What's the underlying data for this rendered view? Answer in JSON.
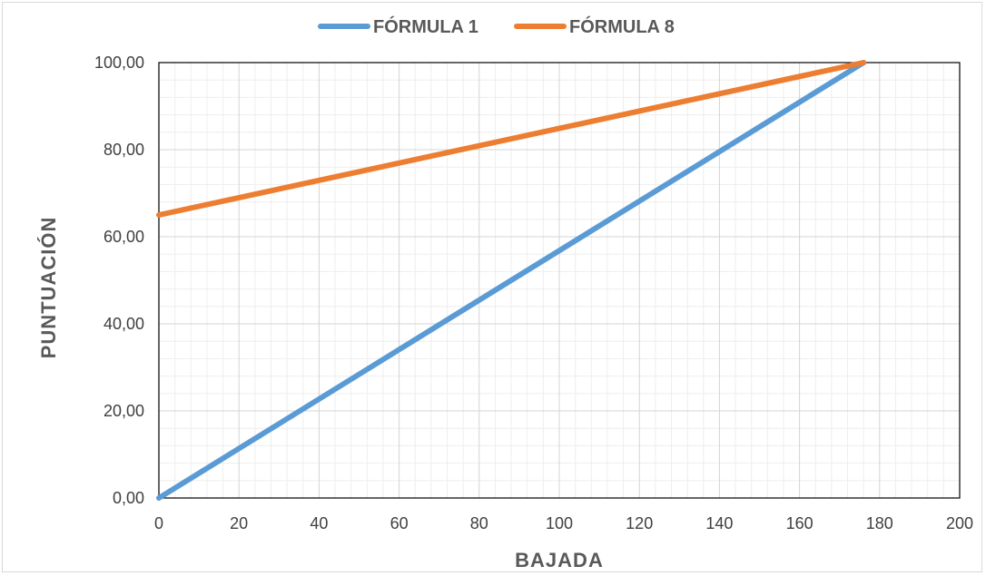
{
  "chart_data": {
    "type": "line",
    "xlabel": "BAJADA",
    "ylabel": "PUNTUACIÓN",
    "xlim": [
      0,
      200
    ],
    "ylim": [
      0,
      100
    ],
    "x_ticks": [
      "0",
      "20",
      "40",
      "60",
      "80",
      "100",
      "120",
      "140",
      "160",
      "180",
      "200"
    ],
    "y_ticks": [
      "0,00",
      "20,00",
      "40,00",
      "60,00",
      "80,00",
      "100,00"
    ],
    "x_major_step": 20,
    "x_minor_step": 4,
    "y_major_step": 20,
    "y_minor_step": 4,
    "grid": true,
    "legend_position": "top",
    "series": [
      {
        "name": "FÓRMULA 1",
        "color": "#5b9bd5",
        "points": [
          [
            0,
            0
          ],
          [
            176,
            100
          ]
        ]
      },
      {
        "name": "FÓRMULA 8",
        "color": "#ed7d31",
        "points": [
          [
            0,
            65
          ],
          [
            176,
            100
          ]
        ]
      }
    ]
  }
}
